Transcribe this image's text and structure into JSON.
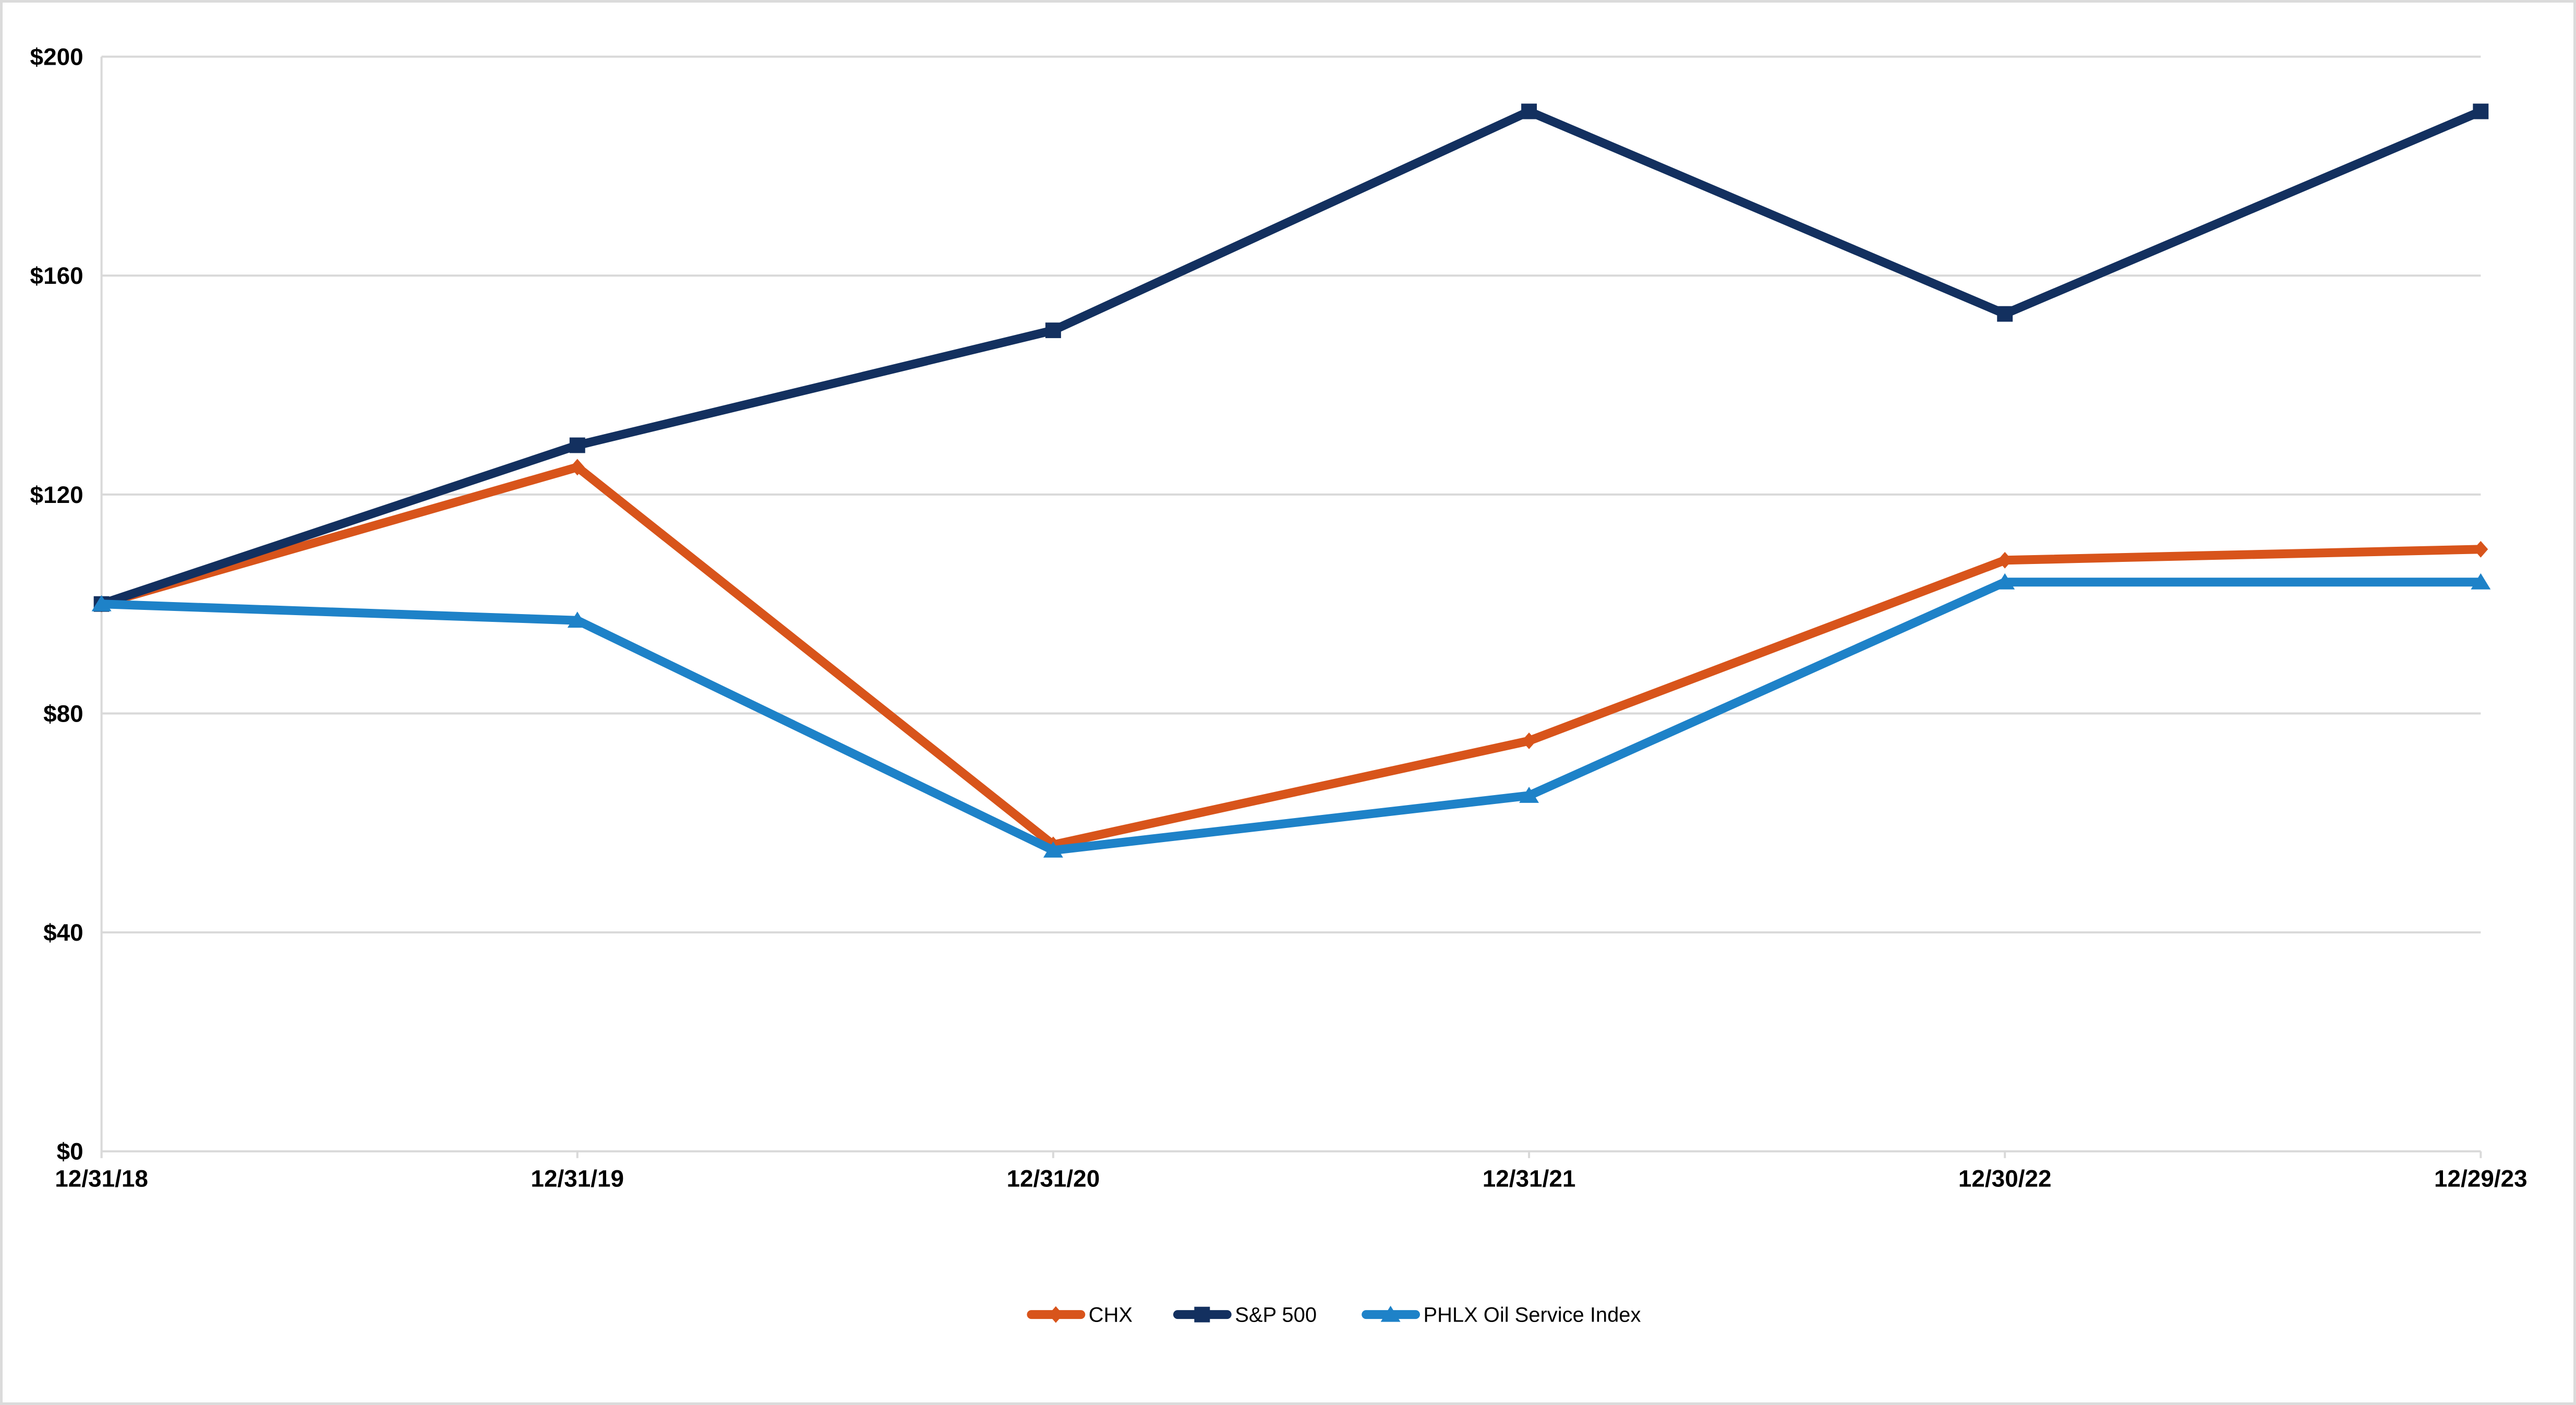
{
  "chart_data": {
    "type": "line",
    "x_categories": [
      "12/31/18",
      "12/31/19",
      "12/31/20",
      "12/31/21",
      "12/30/22",
      "12/29/23"
    ],
    "y_tick_labels": [
      "$0",
      "$40",
      "$80",
      "$120",
      "$160",
      "$200"
    ],
    "y_tick_values": [
      0,
      40,
      80,
      120,
      160,
      200
    ],
    "ylim": [
      0,
      200
    ],
    "grid": "horizontal-only",
    "legend_position": "bottom-center",
    "series": [
      {
        "name": "CHX",
        "color": "#D8541B",
        "marker": "diamond",
        "values": [
          100,
          125,
          56,
          75,
          108,
          110
        ]
      },
      {
        "name": "S&P 500",
        "color": "#13305F",
        "marker": "square",
        "values": [
          100,
          129,
          150,
          190,
          153,
          190
        ]
      },
      {
        "name": "PHLX Oil Service Index",
        "color": "#1E82C8",
        "marker": "triangle",
        "values": [
          100,
          97,
          55,
          65,
          104,
          104
        ]
      }
    ],
    "colors": {
      "background": "#FFFFFF",
      "gridline": "#D9D9D9",
      "axis_line": "#D9D9D9",
      "frame_border": "#DBDBDB",
      "label_text": "#000000"
    }
  }
}
